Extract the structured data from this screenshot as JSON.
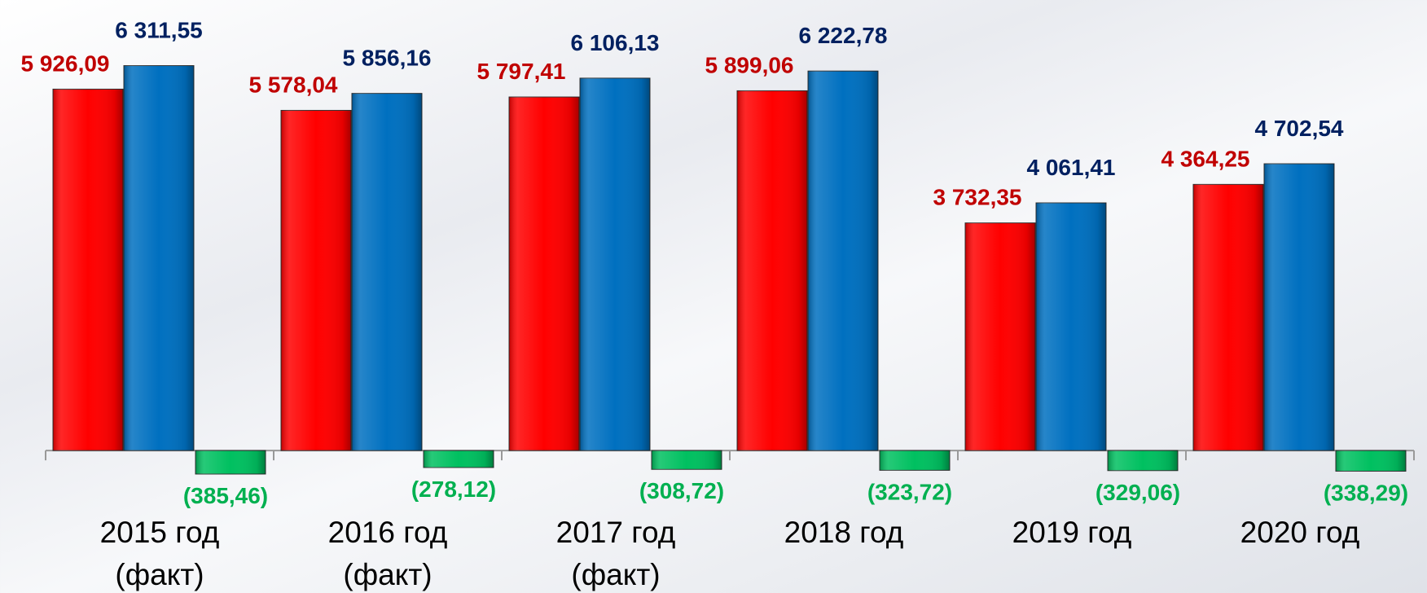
{
  "chart_data": {
    "type": "bar",
    "categories": [
      "2015 год\n(факт)",
      "2016 год\n(факт)",
      "2017 год\n(факт)",
      "2018 год",
      "2019 год",
      "2020 год"
    ],
    "series": [
      {
        "color": "#ff0000",
        "label_color": "#c00000",
        "values": [
          5926.09,
          5578.04,
          5797.41,
          5899.06,
          3732.35,
          4364.25
        ],
        "value_labels": [
          "5 926,09",
          "5 578,04",
          "5 797,41",
          "5 899,06",
          "3 732,35",
          "4 364,25"
        ]
      },
      {
        "color": "#0070c0",
        "label_color": "#002060",
        "values": [
          6311.55,
          5856.16,
          6106.13,
          6222.78,
          4061.41,
          4702.54
        ],
        "value_labels": [
          "6 311,55",
          "5 856,16",
          "6 106,13",
          "6 222,78",
          "4 061,41",
          "4 702,54"
        ]
      },
      {
        "color": "#00c060",
        "label_color": "#00b050",
        "values": [
          -385.46,
          -278.12,
          -308.72,
          -323.72,
          -329.06,
          -338.29
        ],
        "value_labels": [
          "(385,46)",
          "(278,12)",
          "(308,72)",
          "(323,72)",
          "(329,06)",
          "(338,29)"
        ]
      }
    ],
    "ylim": [
      -1000,
      7000
    ]
  }
}
